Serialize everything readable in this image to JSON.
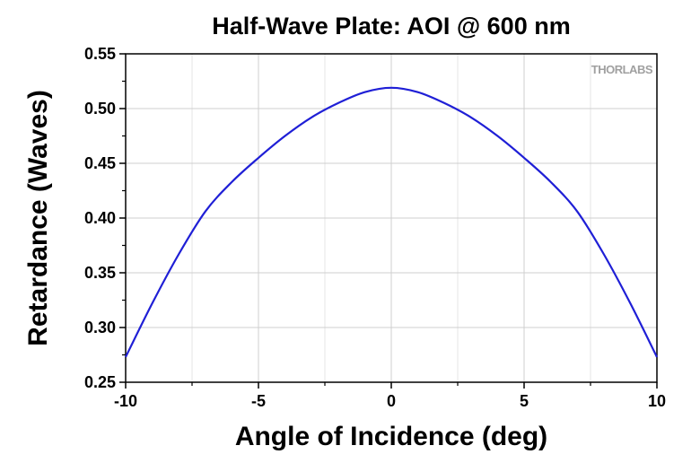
{
  "chart_data": {
    "type": "line",
    "title": "Half-Wave Plate: AOI @ 600 nm",
    "xlabel": "Angle of Incidence (deg)",
    "ylabel": "Retardance (Waves)",
    "xlim": [
      -10,
      10
    ],
    "ylim": [
      0.25,
      0.55
    ],
    "x_ticks": [
      -10,
      -5,
      0,
      5,
      10
    ],
    "x_tick_labels": [
      "-10",
      "-5",
      "0",
      "5",
      "10"
    ],
    "y_ticks": [
      0.25,
      0.3,
      0.35,
      0.4,
      0.45,
      0.5,
      0.55
    ],
    "y_tick_labels": [
      "0.25",
      "0.30",
      "0.35",
      "0.40",
      "0.45",
      "0.50",
      "0.55"
    ],
    "grid": true,
    "series": [
      {
        "color": "#1f1fd6",
        "x": [
          -10,
          -9,
          -8,
          -7,
          -6,
          -5,
          -4,
          -3,
          -2,
          -1,
          0,
          1,
          2,
          3,
          4,
          5,
          6,
          7,
          8,
          9,
          10
        ],
        "y": [
          0.273,
          0.322,
          0.367,
          0.406,
          0.433,
          0.455,
          0.475,
          0.492,
          0.505,
          0.515,
          0.519,
          0.515,
          0.505,
          0.492,
          0.475,
          0.455,
          0.433,
          0.406,
          0.367,
          0.322,
          0.273
        ]
      }
    ]
  },
  "watermark": {
    "text": "THORLABS"
  }
}
